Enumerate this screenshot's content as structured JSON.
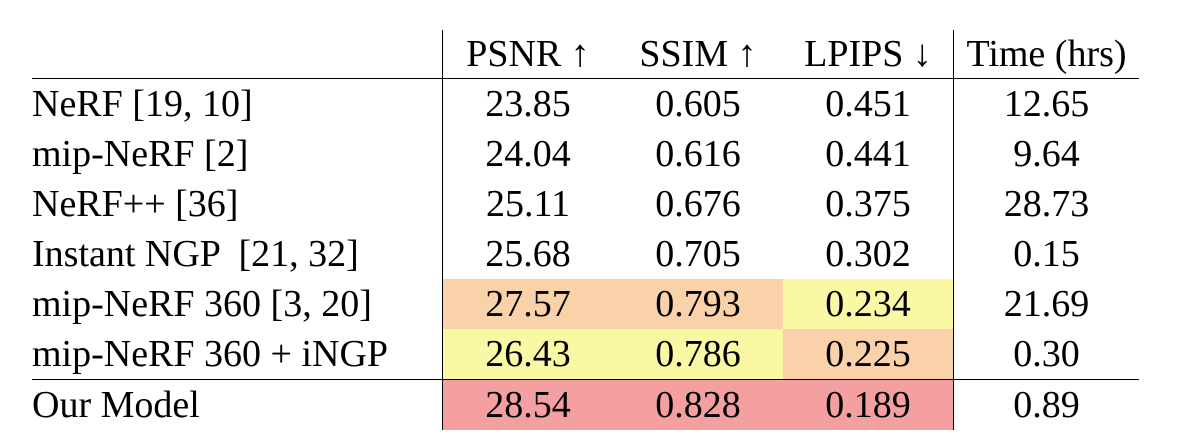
{
  "table": {
    "columns": [
      "",
      "PSNR ↑",
      "SSIM ↑",
      "LPIPS ↓",
      "Time (hrs)"
    ],
    "rows": [
      {
        "method": "NeRF [19, 10]",
        "psnr": "23.85",
        "ssim": "0.605",
        "lpips": "0.451",
        "time": "12.65"
      },
      {
        "method": "mip-NeRF [2]",
        "psnr": "24.04",
        "ssim": "0.616",
        "lpips": "0.441",
        "time": "9.64"
      },
      {
        "method": "NeRF++ [36]",
        "psnr": "25.11",
        "ssim": "0.676",
        "lpips": "0.375",
        "time": "28.73"
      },
      {
        "method": "Instant NGP  [21, 32]",
        "psnr": "25.68",
        "ssim": "0.705",
        "lpips": "0.302",
        "time": "0.15"
      },
      {
        "method": "mip-NeRF 360 [3, 20]",
        "psnr": "27.57",
        "ssim": "0.793",
        "lpips": "0.234",
        "time": "21.69"
      },
      {
        "method": "mip-NeRF 360 + iNGP",
        "psnr": "26.43",
        "ssim": "0.786",
        "lpips": "0.225",
        "time": "0.30"
      },
      {
        "method": "Our Model",
        "psnr": "28.54",
        "ssim": "0.828",
        "lpips": "0.189",
        "time": "0.89"
      }
    ]
  },
  "highlight_colors": {
    "first": "#f4a0a0",
    "second": "#f9d2aa",
    "third": "#fbf8a5"
  }
}
